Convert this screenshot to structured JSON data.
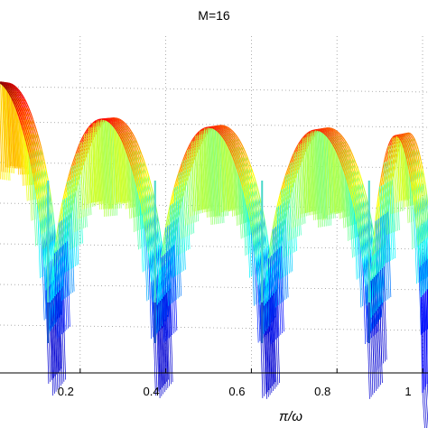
{
  "chart_data": {
    "type": "surface",
    "title": "M=16",
    "xlabel": "π/ω",
    "ylabel": "",
    "x_ticks": [
      "0.2",
      "0.4",
      "0.6",
      "0.8",
      "1"
    ],
    "x_tick_values": [
      0.2,
      0.4,
      0.6,
      0.8,
      1.0
    ],
    "xlim": [
      0,
      1
    ],
    "grid": true,
    "colormap": "jet",
    "notches": [
      0.125,
      0.375,
      0.625,
      0.875
    ],
    "lobes": [
      {
        "x_start": 0.0,
        "x_end": 0.125,
        "peak": 1.0
      },
      {
        "x_start": 0.125,
        "x_end": 0.375,
        "peak": 0.86
      },
      {
        "x_start": 0.375,
        "x_end": 0.625,
        "peak": 0.83
      },
      {
        "x_start": 0.625,
        "x_end": 0.875,
        "peak": 0.82
      },
      {
        "x_start": 0.875,
        "x_end": 1.0,
        "peak": 0.8
      }
    ]
  }
}
